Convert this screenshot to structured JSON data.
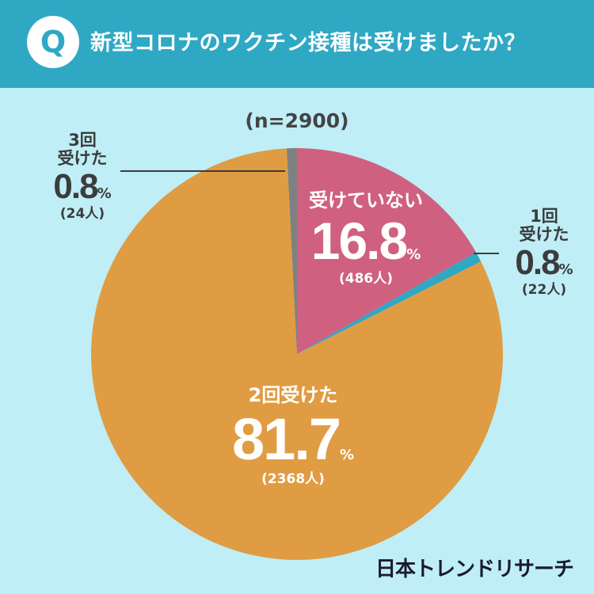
{
  "header": {
    "badge": "Q",
    "question": "新型コロナのワクチン接種は受けましたか？"
  },
  "sample_size": "(n=2900)",
  "brand": "日本トレンドリサーチ",
  "colors": {
    "not_received": "#d06080",
    "once": "#2fa8c4",
    "twice": "#e09c42",
    "three_times": "#808080",
    "background": "#bfeef7",
    "header": "#2fa8c4"
  },
  "chart_data": {
    "type": "pie",
    "title": "新型コロナのワクチン接種は受けましたか？",
    "n": 2900,
    "slices": [
      {
        "name": "受けていない",
        "percent": 16.8,
        "percent_text": "16.8",
        "count_text": "(486人)",
        "color_key": "not_received"
      },
      {
        "name": "1回受けた",
        "name_line1": "1回",
        "name_line2": "受けた",
        "percent": 0.8,
        "percent_text": "0.8",
        "count_text": "(22人)",
        "color_key": "once"
      },
      {
        "name": "2回受けた",
        "percent": 81.7,
        "percent_text": "81.7",
        "count_text": "(2368人)",
        "color_key": "twice"
      },
      {
        "name": "3回受けた",
        "name_line1": "3回",
        "name_line2": "受けた",
        "percent": 0.8,
        "percent_text": "0.8",
        "count_text": "(24人)",
        "color_key": "three_times"
      }
    ],
    "percent_unit": "%"
  }
}
